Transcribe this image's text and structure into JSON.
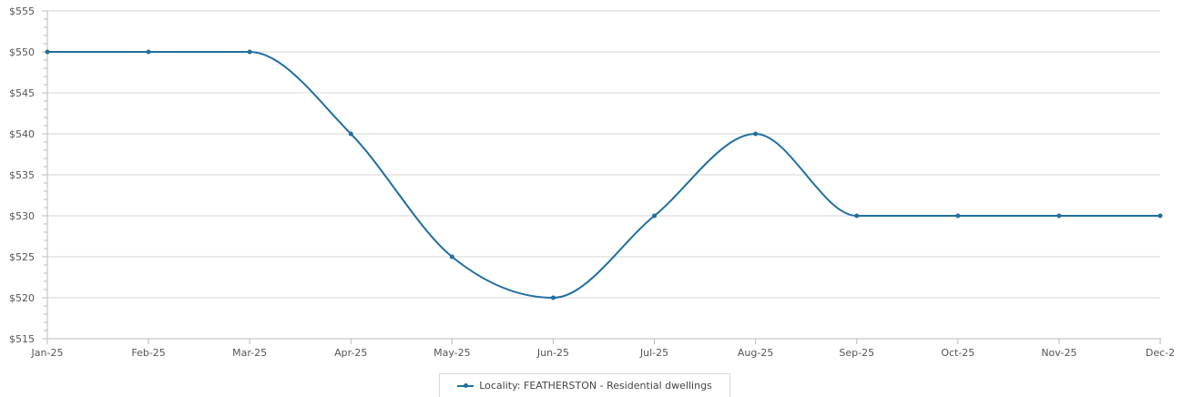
{
  "chart_data": {
    "type": "line",
    "title": "",
    "xlabel": "",
    "ylabel": "",
    "categories": [
      "Jan-25",
      "Feb-25",
      "Mar-25",
      "Apr-25",
      "May-25",
      "Jun-25",
      "Jul-25",
      "Aug-25",
      "Sep-25",
      "Oct-25",
      "Nov-25",
      "Dec-2"
    ],
    "ylim": [
      515,
      555
    ],
    "yticks": [
      "$555",
      "$550",
      "$545",
      "$540",
      "$535",
      "$530",
      "$525",
      "$520",
      "$515"
    ],
    "grid": true,
    "legend_position": "bottom-center",
    "series": [
      {
        "name": "Locality: FEATHERSTON - Residential dwellings",
        "color": "#1f6f9f",
        "values": [
          550,
          550,
          550,
          540,
          525,
          520,
          530,
          540,
          530,
          530,
          530,
          530
        ]
      }
    ]
  }
}
